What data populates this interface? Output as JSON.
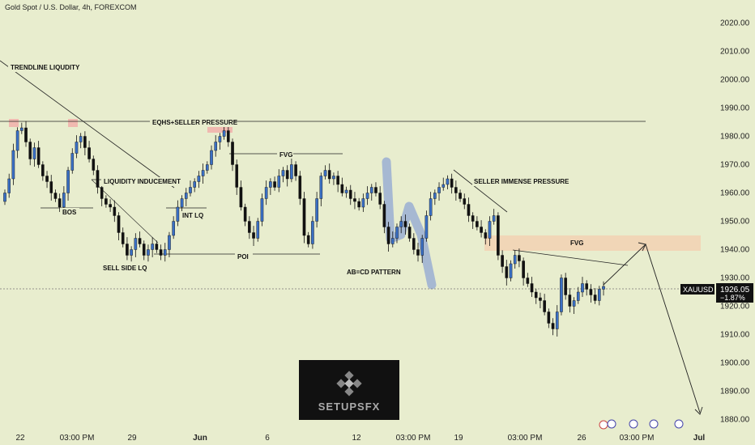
{
  "header": {
    "title": "Gold Spot / U.S. Dollar, 4h, FOREXCOM"
  },
  "price_tag": {
    "symbol": "XAUUSD",
    "price": "1926.05",
    "change": "−1.87%"
  },
  "watermark": {
    "text": "SETUPSFX"
  },
  "colors": {
    "background": "#e8edce",
    "bull": "#3a6fc4",
    "bear": "#111111",
    "zone": "#f2d3b5",
    "supply": "#f0b9b0",
    "highlight": "#9aaed2"
  },
  "annotations": [
    {
      "id": "trendline-liquidity",
      "text": "TRENDLINE LIQUDITY"
    },
    {
      "id": "eqhs",
      "text": "EQHS+SELLER PRESSURE"
    },
    {
      "id": "fvg1",
      "text": "FVG"
    },
    {
      "id": "liq-ind",
      "text": "LIQUIDITY INDUCEMENT"
    },
    {
      "id": "int-lq",
      "text": "INT LQ"
    },
    {
      "id": "bos",
      "text": "BOS"
    },
    {
      "id": "ssl",
      "text": "SELL SIDE LQ"
    },
    {
      "id": "poi",
      "text": "POI"
    },
    {
      "id": "seller",
      "text": "SELLER IMMENSE PRESSURE"
    },
    {
      "id": "fvg2",
      "text": "FVG"
    },
    {
      "id": "abcd",
      "text": "AB=CD PATTERN"
    }
  ],
  "chart_data": {
    "type": "candlestick",
    "title": "Gold Spot / U.S. Dollar, 4h, FOREXCOM",
    "ylim": [
      1877,
      2026
    ],
    "y_ticks": [
      "2020.00",
      "2010.00",
      "2000.00",
      "1990.00",
      "1980.00",
      "1970.00",
      "1960.00",
      "1950.00",
      "1940.00",
      "1930.00",
      "1920.00",
      "1910.00",
      "1900.00",
      "1890.00",
      "1880.00"
    ],
    "x_ticks": [
      "22",
      "03:00 PM",
      "29",
      "Jun",
      "6",
      "12",
      "03:00 PM",
      "19",
      "03:00 PM",
      "26",
      "03:00 PM",
      "Jul"
    ],
    "key_levels": {
      "eqhs_line": 1985,
      "fvg_upper_line": 1972,
      "poi_line": 1938,
      "current_price": 1926.05
    },
    "zones": [
      {
        "label": "FVG",
        "from": 1939.5,
        "to": 1945
      }
    ],
    "closes": [
      1960,
      1965,
      1975,
      1982,
      1983,
      1978,
      1972,
      1976,
      1970,
      1966,
      1964,
      1960,
      1958,
      1955,
      1960,
      1968,
      1974,
      1978,
      1980,
      1976,
      1972,
      1968,
      1962,
      1958,
      1956,
      1955,
      1952,
      1946,
      1942,
      1938,
      1940,
      1944,
      1942,
      1938,
      1940,
      1942,
      1940,
      1938,
      1940,
      1945,
      1950,
      1955,
      1958,
      1960,
      1962,
      1964,
      1966,
      1968,
      1970,
      1975,
      1978,
      1980,
      1982,
      1978,
      1970,
      1962,
      1955,
      1950,
      1946,
      1944,
      1950,
      1958,
      1962,
      1964,
      1962,
      1966,
      1968,
      1965,
      1970,
      1966,
      1958,
      1945,
      1942,
      1950,
      1958,
      1966,
      1968,
      1965,
      1966,
      1963,
      1960,
      1961,
      1958,
      1957,
      1955,
      1958,
      1960,
      1962,
      1960,
      1956,
      1948,
      1942,
      1944,
      1948,
      1950,
      1948,
      1944,
      1940,
      1938,
      1944,
      1952,
      1958,
      1960,
      1962,
      1963,
      1965,
      1962,
      1960,
      1958,
      1956,
      1952,
      1950,
      1948,
      1946,
      1944,
      1950,
      1952,
      1938,
      1934,
      1930,
      1935,
      1938,
      1936,
      1930,
      1928,
      1925,
      1923,
      1922,
      1918,
      1914,
      1912,
      1918,
      1930,
      1924,
      1920,
      1922,
      1925,
      1928,
      1926,
      1924,
      1922,
      1926,
      1927
    ]
  }
}
